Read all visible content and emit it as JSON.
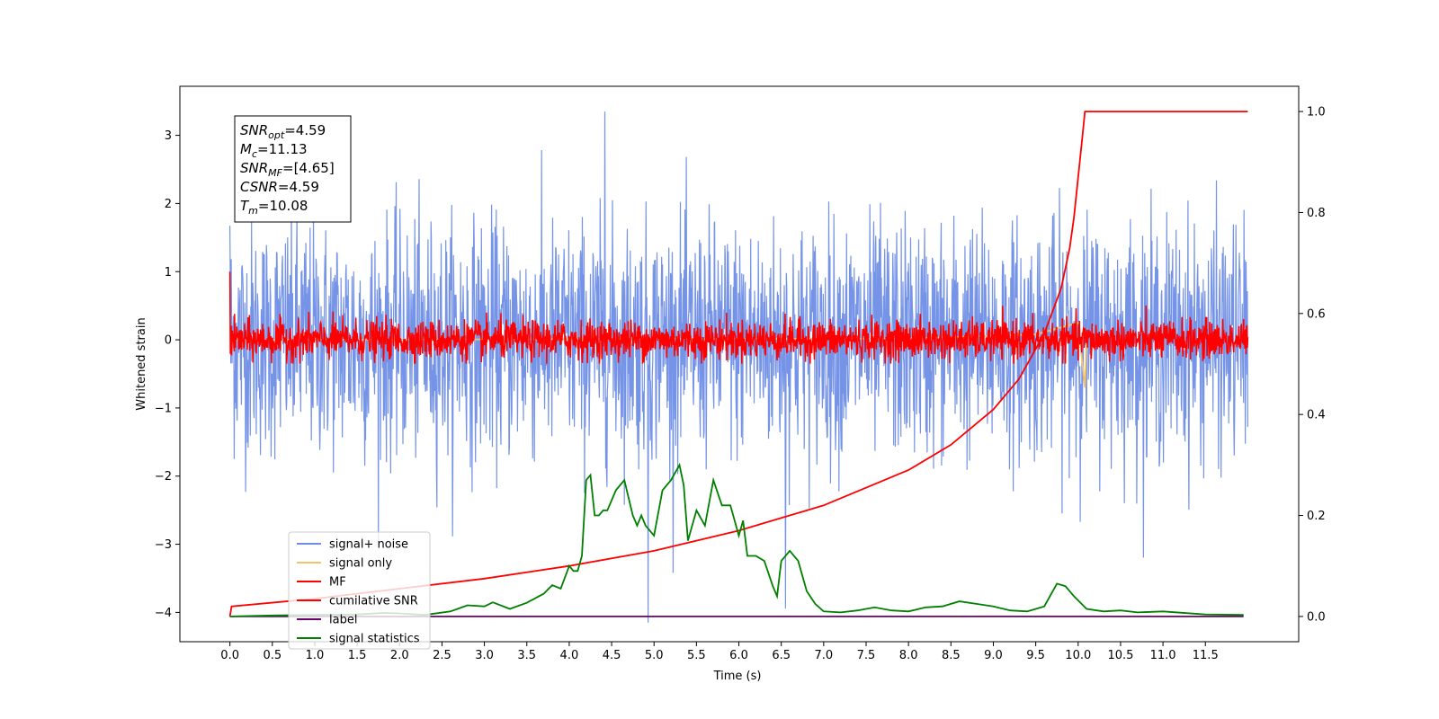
{
  "chart_data": {
    "type": "line",
    "xlabel": "Time (s)",
    "ylabel": "Whitened strain",
    "xlim": [
      -0.59,
      12.6
    ],
    "ylim": [
      -4.43,
      3.72
    ],
    "y2lim": [
      -0.05,
      1.05
    ],
    "grid": false,
    "legend_position": "lower-left",
    "x_ticks": [
      "0.0",
      "0.5",
      "1.0",
      "1.5",
      "2.0",
      "2.5",
      "3.0",
      "3.5",
      "4.0",
      "4.5",
      "5.0",
      "5.5",
      "6.0",
      "6.5",
      "7.0",
      "7.5",
      "8.0",
      "8.5",
      "9.0",
      "9.5",
      "10.0",
      "10.5",
      "11.0",
      "11.5"
    ],
    "y_ticks": [
      "3",
      "2",
      "1",
      "0",
      "−1",
      "−2",
      "−3",
      "−4"
    ],
    "y2_ticks": [
      "1.0",
      "0.8",
      "0.6",
      "0.4",
      "0.2",
      "0.0"
    ],
    "annotation": {
      "lines": [
        {
          "var": "SNR",
          "sub": "opt",
          "value": "=4.59"
        },
        {
          "var": "M",
          "sub": "c",
          "value": "=11.13"
        },
        {
          "var": "SNR",
          "sub": "MF",
          "value": "=[4.65]"
        },
        {
          "var": "CSNR",
          "sub": "",
          "value": "=4.59"
        },
        {
          "var": "T",
          "sub": "m",
          "value": "=10.08"
        }
      ]
    },
    "series": [
      {
        "name": "signal+ noise",
        "color": "#6f8ee6",
        "axis": "left",
        "style": "noise",
        "t_range": [
          0.0,
          12.0
        ],
        "amplitude": 0.85,
        "peak_max": 3.35,
        "peak_min": -4.15
      },
      {
        "name": "signal only",
        "color": "#f5c26b",
        "axis": "left",
        "style": "chirp",
        "t_range": [
          0.0,
          10.1
        ],
        "x": [
          0.0,
          8.0,
          9.5,
          10.0,
          10.08,
          10.1
        ],
        "y": [
          0.0,
          0.02,
          0.08,
          0.25,
          -0.7,
          0.0
        ]
      },
      {
        "name": "MF",
        "color": "#ff0000",
        "axis": "left",
        "style": "noise",
        "t_range": [
          0.0,
          12.0
        ],
        "amplitude": 0.14,
        "peak_max": 1.0,
        "peak_min": -0.35
      },
      {
        "name": "cumilative SNR",
        "color": "#ff0000",
        "axis": "right",
        "style": "line",
        "x": [
          0.0,
          0.02,
          1.0,
          2.0,
          3.0,
          4.0,
          5.0,
          6.0,
          7.0,
          8.0,
          8.5,
          9.0,
          9.3,
          9.6,
          9.8,
          9.9,
          9.95,
          10.0,
          10.05,
          10.08,
          12.0
        ],
        "y": [
          0.0,
          0.02,
          0.035,
          0.055,
          0.075,
          0.1,
          0.13,
          0.17,
          0.22,
          0.29,
          0.34,
          0.41,
          0.47,
          0.56,
          0.65,
          0.73,
          0.79,
          0.87,
          0.95,
          1.0,
          1.0
        ]
      },
      {
        "name": "label",
        "color": "#6a006a",
        "axis": "right",
        "style": "line",
        "x": [
          0.0,
          11.95
        ],
        "y": [
          0.0,
          0.0
        ]
      },
      {
        "name": "signal statistics",
        "color": "#008000",
        "axis": "right",
        "style": "line",
        "x": [
          0.0,
          0.5,
          1.0,
          1.5,
          1.8,
          2.0,
          2.3,
          2.6,
          2.8,
          3.0,
          3.1,
          3.3,
          3.5,
          3.7,
          3.8,
          3.9,
          4.0,
          4.05,
          4.1,
          4.15,
          4.2,
          4.25,
          4.3,
          4.35,
          4.4,
          4.45,
          4.55,
          4.65,
          4.75,
          4.8,
          4.85,
          4.9,
          5.0,
          5.1,
          5.2,
          5.3,
          5.35,
          5.4,
          5.5,
          5.6,
          5.7,
          5.8,
          5.9,
          6.0,
          6.05,
          6.1,
          6.2,
          6.3,
          6.4,
          6.45,
          6.5,
          6.6,
          6.7,
          6.8,
          6.9,
          7.0,
          7.2,
          7.4,
          7.6,
          7.8,
          8.0,
          8.2,
          8.4,
          8.6,
          8.8,
          9.0,
          9.2,
          9.4,
          9.6,
          9.75,
          9.85,
          9.95,
          10.1,
          10.3,
          10.5,
          10.7,
          11.0,
          11.5,
          11.95
        ],
        "y": [
          0.0,
          0.002,
          0.003,
          0.004,
          0.007,
          0.006,
          0.003,
          0.01,
          0.022,
          0.02,
          0.028,
          0.015,
          0.027,
          0.045,
          0.062,
          0.055,
          0.1,
          0.09,
          0.09,
          0.12,
          0.27,
          0.28,
          0.2,
          0.2,
          0.21,
          0.21,
          0.25,
          0.27,
          0.2,
          0.18,
          0.2,
          0.18,
          0.16,
          0.25,
          0.27,
          0.3,
          0.26,
          0.15,
          0.21,
          0.18,
          0.27,
          0.22,
          0.22,
          0.16,
          0.19,
          0.12,
          0.12,
          0.11,
          0.06,
          0.04,
          0.11,
          0.13,
          0.11,
          0.05,
          0.025,
          0.01,
          0.008,
          0.012,
          0.018,
          0.012,
          0.01,
          0.018,
          0.02,
          0.03,
          0.025,
          0.02,
          0.012,
          0.01,
          0.02,
          0.065,
          0.06,
          0.04,
          0.015,
          0.01,
          0.012,
          0.008,
          0.01,
          0.004,
          0.003
        ]
      }
    ]
  }
}
